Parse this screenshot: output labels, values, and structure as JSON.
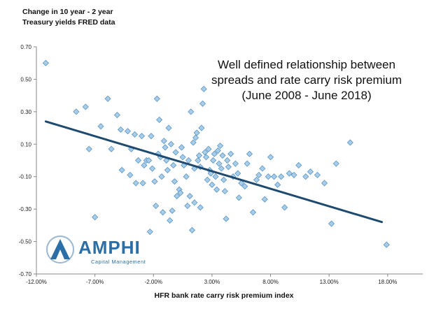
{
  "chart_data": {
    "type": "scatter",
    "ylabel_lines": [
      "Change in 10 year - 2 year",
      "Treasury yields FRED data"
    ],
    "annotation_lines": [
      "Well defined relationship between",
      "spreads and rate carry risk premium",
      "(June 2008 - June 2018)"
    ],
    "xlabel": "HFR bank rate carry  risk premium index",
    "x_ticks": [
      "-12.00%",
      "-7.00%",
      "-2.00%",
      "3.00%",
      "8.00%",
      "13.00%",
      "18.00%"
    ],
    "x_tick_values": [
      -12,
      -7,
      -2,
      3,
      8,
      13,
      18
    ],
    "y_ticks": [
      "0.70",
      "0.50",
      "0.30",
      "0.10",
      "-0.10",
      "-0.30",
      "-0.50",
      "-0.70"
    ],
    "y_tick_values": [
      0.7,
      0.5,
      0.3,
      0.1,
      -0.1,
      -0.3,
      -0.5,
      -0.7
    ],
    "xlim": [
      -12,
      21
    ],
    "ylim": [
      -0.7,
      0.7
    ],
    "marker_color": "#a8cde8",
    "marker_edge_color": "#5b95c4",
    "trend_color": "#1f4a70",
    "trendline": {
      "x": [
        -11.2,
        17.5
      ],
      "y": [
        0.24,
        -0.38
      ]
    },
    "series": [
      {
        "points": [
          [
            -11.2,
            0.6
          ],
          [
            -8.6,
            0.3
          ],
          [
            -7.8,
            0.33
          ],
          [
            -7.5,
            0.07
          ],
          [
            -7.0,
            -0.35
          ],
          [
            -6.5,
            0.21
          ],
          [
            -5.9,
            0.38
          ],
          [
            -5.6,
            0.07
          ],
          [
            -5.1,
            0.28
          ],
          [
            -4.8,
            0.19
          ],
          [
            -4.7,
            -0.06
          ],
          [
            -4.2,
            0.18
          ],
          [
            -3.9,
            0.07
          ],
          [
            -3.6,
            0.16
          ],
          [
            -3.5,
            -0.14
          ],
          [
            -3.3,
            0.0
          ],
          [
            -3.0,
            0.15
          ],
          [
            -2.9,
            -0.14
          ],
          [
            -2.8,
            -0.03
          ],
          [
            -2.6,
            0.0
          ],
          [
            -2.4,
            0.0
          ],
          [
            -2.2,
            0.15
          ],
          [
            -2.1,
            -0.05
          ],
          [
            -1.9,
            -0.13
          ],
          [
            -1.8,
            -0.28
          ],
          [
            -1.7,
            0.38
          ],
          [
            -1.6,
            0.04
          ],
          [
            -1.5,
            0.25
          ],
          [
            -1.4,
            0.02
          ],
          [
            -1.3,
            -0.1
          ],
          [
            -1.1,
            0.12
          ],
          [
            -1.0,
            0.08
          ],
          [
            -0.9,
            0.0
          ],
          [
            -0.8,
            -0.06
          ],
          [
            -0.7,
            0.2
          ],
          [
            -0.6,
            -0.37
          ],
          [
            -0.5,
            0.1
          ],
          [
            -0.3,
            -0.03
          ],
          [
            -0.2,
            -0.13
          ],
          [
            -0.1,
            0.05
          ],
          [
            0.0,
            -0.22
          ],
          [
            0.2,
            -0.18
          ],
          [
            0.3,
            -0.2
          ],
          [
            0.4,
            0.08
          ],
          [
            0.5,
            0.02
          ],
          [
            0.6,
            -0.03
          ],
          [
            0.8,
            -0.1
          ],
          [
            1.0,
            0.0
          ],
          [
            1.1,
            -0.22
          ],
          [
            1.2,
            0.3
          ],
          [
            1.3,
            -0.43
          ],
          [
            1.4,
            0.11
          ],
          [
            1.5,
            -0.05
          ],
          [
            1.6,
            0.14
          ],
          [
            1.7,
            0.17
          ],
          [
            1.8,
            0.0
          ],
          [
            1.9,
            0.03
          ],
          [
            2.0,
            -0.04
          ],
          [
            2.1,
            0.2
          ],
          [
            2.2,
            0.35
          ],
          [
            2.3,
            0.44
          ],
          [
            2.4,
            0.05
          ],
          [
            2.5,
            0.02
          ],
          [
            2.6,
            -0.12
          ],
          [
            2.7,
            0.07
          ],
          [
            2.8,
            -0.06
          ],
          [
            2.9,
            -0.08
          ],
          [
            3.0,
            -0.15
          ],
          [
            3.1,
            0.0
          ],
          [
            3.2,
            0.04
          ],
          [
            3.3,
            -0.1
          ],
          [
            3.4,
            -0.18
          ],
          [
            3.5,
            0.06
          ],
          [
            3.6,
            -0.02
          ],
          [
            3.7,
            0.09
          ],
          [
            3.8,
            -0.05
          ],
          [
            3.9,
            0.03
          ],
          [
            4.0,
            -0.12
          ],
          [
            4.1,
            -0.19
          ],
          [
            4.2,
            -0.36
          ],
          [
            4.3,
            0.0
          ],
          [
            4.4,
            -0.04
          ],
          [
            4.6,
            0.04
          ],
          [
            4.8,
            -0.1
          ],
          [
            5.0,
            -0.02
          ],
          [
            5.2,
            -0.08
          ],
          [
            5.5,
            -0.14
          ],
          [
            5.8,
            -0.16
          ],
          [
            6.0,
            -0.02
          ],
          [
            6.2,
            0.04
          ],
          [
            6.5,
            -0.32
          ],
          [
            6.8,
            -0.12
          ],
          [
            7.0,
            -0.09
          ],
          [
            7.3,
            -0.05
          ],
          [
            7.5,
            -0.24
          ],
          [
            7.8,
            -0.1
          ],
          [
            8.0,
            0.02
          ],
          [
            8.3,
            -0.1
          ],
          [
            8.6,
            -0.15
          ],
          [
            8.9,
            -0.1
          ],
          [
            9.2,
            -0.29
          ],
          [
            9.6,
            -0.08
          ],
          [
            10.0,
            -0.09
          ],
          [
            10.4,
            -0.03
          ],
          [
            11.0,
            -0.1
          ],
          [
            11.4,
            -0.07
          ],
          [
            12.0,
            -0.09
          ],
          [
            12.6,
            -0.14
          ],
          [
            13.2,
            -0.39
          ],
          [
            13.6,
            -0.02
          ],
          [
            14.8,
            0.11
          ],
          [
            17.9,
            -0.52
          ],
          [
            -4.0,
            -0.09
          ],
          [
            -2.3,
            -0.44
          ],
          [
            0.9,
            -0.28
          ],
          [
            2.0,
            -0.29
          ],
          [
            -1.2,
            -0.32
          ],
          [
            1.5,
            -0.26
          ],
          [
            5.3,
            -0.23
          ],
          [
            -0.4,
            -0.31
          ]
        ]
      }
    ]
  },
  "logo": {
    "name": "AMPHI",
    "subtitle": "Capital Management",
    "color": "#2c6fa6"
  }
}
